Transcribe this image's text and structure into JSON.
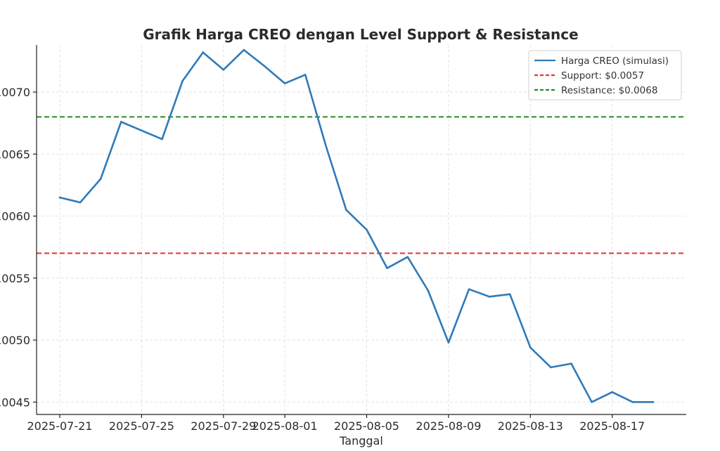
{
  "chart_data": {
    "type": "line",
    "title": "Grafik Harga CREO dengan Level Support & Resistance",
    "xlabel": "Tanggal",
    "ylabel": "",
    "x": [
      "2025-07-21",
      "2025-07-22",
      "2025-07-23",
      "2025-07-24",
      "2025-07-25",
      "2025-07-26",
      "2025-07-27",
      "2025-07-28",
      "2025-07-29",
      "2025-07-30",
      "2025-07-31",
      "2025-08-01",
      "2025-08-02",
      "2025-08-03",
      "2025-08-04",
      "2025-08-05",
      "2025-08-06",
      "2025-08-07",
      "2025-08-08",
      "2025-08-09",
      "2025-08-10",
      "2025-08-11",
      "2025-08-12",
      "2025-08-13",
      "2025-08-14",
      "2025-08-15",
      "2025-08-16",
      "2025-08-17",
      "2025-08-18",
      "2025-08-19"
    ],
    "x_tick_labels": [
      "2025-07-21",
      "2025-07-25",
      "2025-07-29",
      "2025-08-01",
      "2025-08-05",
      "2025-08-09",
      "2025-08-13",
      "2025-08-17"
    ],
    "y_tick_labels": [
      ".0045",
      ".0050",
      ".0055",
      ".0060",
      ".0065",
      ".0070"
    ],
    "y_tick_values": [
      0.0045,
      0.005,
      0.0055,
      0.006,
      0.0065,
      0.007
    ],
    "ylim": [
      0.0044,
      0.00738
    ],
    "grid": true,
    "legend_position": "top-right",
    "series": [
      {
        "name": "Harga CREO (simulasi)",
        "color": "#2f7ab8",
        "style": "solid",
        "values": [
          0.00615,
          0.00611,
          0.0063,
          0.00676,
          0.00669,
          0.00662,
          0.00709,
          0.00732,
          0.00718,
          0.00734,
          0.00721,
          0.00707,
          0.00714,
          0.00657,
          0.00605,
          0.00589,
          0.00558,
          0.00567,
          0.0054,
          0.00498,
          0.00541,
          0.00535,
          0.00537,
          0.00494,
          0.00478,
          0.00481,
          0.0045,
          0.00458,
          0.0045,
          0.0045
        ]
      }
    ],
    "reference_lines": [
      {
        "name": "Support: $0.0057",
        "value": 0.0057,
        "color": "#e8332d",
        "style": "dashed"
      },
      {
        "name": "Resistance: $0.0068",
        "value": 0.0068,
        "color": "#2a8a2a",
        "style": "dashed"
      }
    ]
  }
}
